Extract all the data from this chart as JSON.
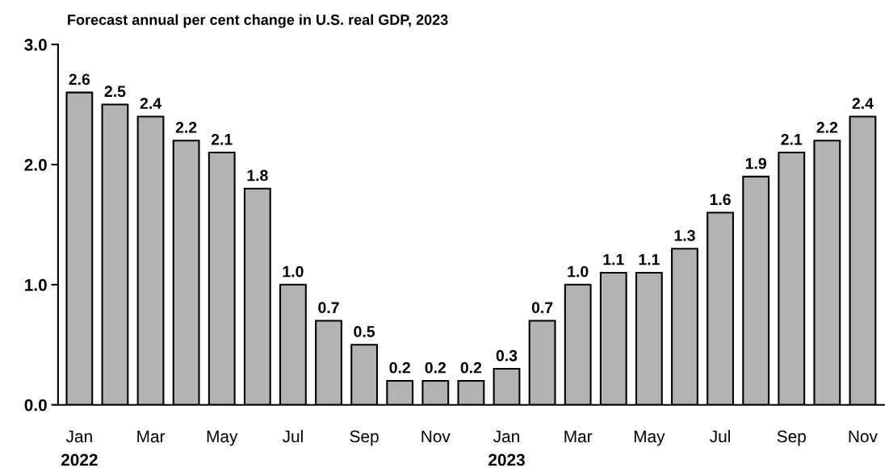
{
  "chart_data": {
    "type": "bar",
    "title": "Forecast annual per cent change in U.S. real GDP, 2023",
    "categories": [
      "Jan\n2022",
      null,
      "Mar",
      null,
      "May",
      null,
      "Jul",
      null,
      "Sep",
      null,
      "Nov",
      null,
      "Jan\n2023",
      null,
      "Mar",
      null,
      "May",
      null,
      "Jul",
      null,
      "Sep",
      null,
      "Nov"
    ],
    "values": [
      2.6,
      2.5,
      2.4,
      2.2,
      2.1,
      1.8,
      1.0,
      0.7,
      0.5,
      0.2,
      0.2,
      0.2,
      0.3,
      0.7,
      1.0,
      1.1,
      1.1,
      1.3,
      1.6,
      1.9,
      2.1,
      2.2,
      2.4
    ],
    "color": "#b3b3b3",
    "ylim": [
      0,
      3
    ],
    "yticks": [
      {
        "value": 0,
        "label": "0.0"
      },
      {
        "value": 1,
        "label": "1.0"
      },
      {
        "value": 2,
        "label": "2.0"
      },
      {
        "value": 3,
        "label": "3.0"
      }
    ],
    "value_labels": [
      "2.6",
      "2.5",
      "2.4",
      "2.2",
      "2.1",
      "1.8",
      "1.0",
      "0.7",
      "0.5",
      "0.2",
      "0.2",
      "0.2",
      "0.3",
      "0.7",
      "1.0",
      "1.1",
      "1.1",
      "1.3",
      "1.6",
      "1.9",
      "2.1",
      "2.2",
      "2.4"
    ],
    "grid": false,
    "legend": false
  }
}
